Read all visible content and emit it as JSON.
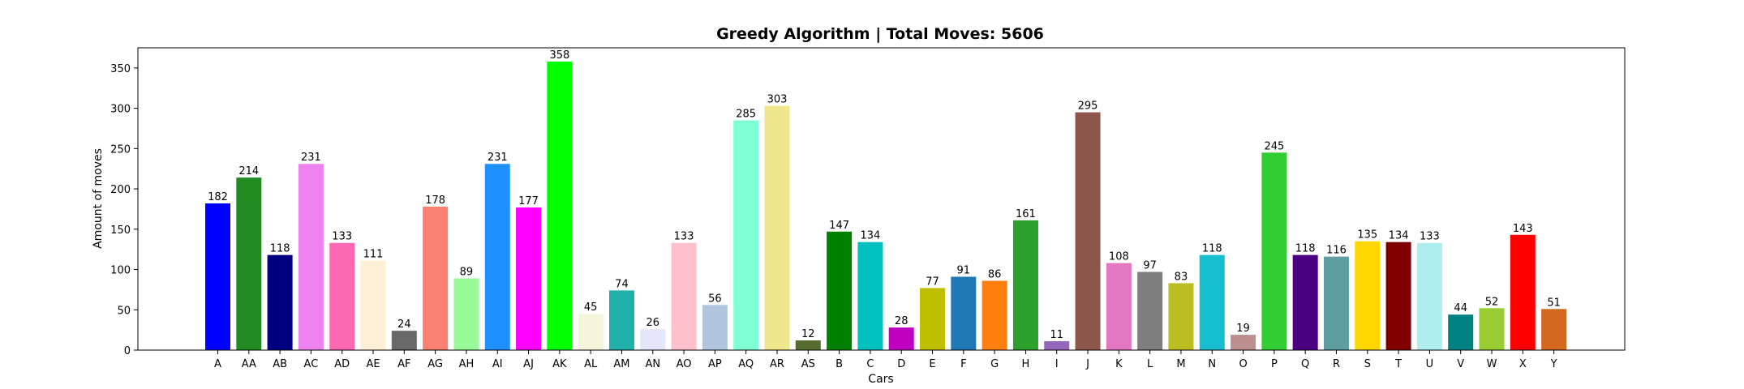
{
  "chart_data": {
    "type": "bar",
    "title": "Greedy Algorithm | Total Moves: 5606",
    "xlabel": "Cars",
    "ylabel": "Amount of moves",
    "ylim": [
      0,
      375
    ],
    "yticks": [
      0,
      50,
      100,
      150,
      200,
      250,
      300,
      350
    ],
    "grid": false,
    "categories": [
      "A",
      "AA",
      "AB",
      "AC",
      "AD",
      "AE",
      "AF",
      "AG",
      "AH",
      "AI",
      "AJ",
      "AK",
      "AL",
      "AM",
      "AN",
      "AO",
      "AP",
      "AQ",
      "AR",
      "AS",
      "B",
      "C",
      "D",
      "E",
      "F",
      "G",
      "H",
      "I",
      "J",
      "K",
      "L",
      "M",
      "N",
      "O",
      "P",
      "Q",
      "R",
      "S",
      "T",
      "U",
      "V",
      "W",
      "X",
      "Y"
    ],
    "values": [
      182,
      214,
      118,
      231,
      133,
      111,
      24,
      178,
      89,
      231,
      177,
      358,
      45,
      74,
      26,
      133,
      56,
      285,
      303,
      12,
      147,
      134,
      28,
      77,
      91,
      86,
      161,
      11,
      295,
      108,
      97,
      83,
      118,
      19,
      245,
      118,
      116,
      135,
      134,
      133,
      44,
      52,
      143,
      51
    ],
    "colors": [
      "#0000ff",
      "#228b22",
      "#000080",
      "#ee82ee",
      "#ff69b4",
      "#ffefd5",
      "#696969",
      "#fa8072",
      "#98fb98",
      "#1e90ff",
      "#ff00ff",
      "#00ff00",
      "#f5f5dc",
      "#20b2aa",
      "#e6e6fa",
      "#ffc0cb",
      "#b0c4de",
      "#7fffd4",
      "#f0e68c",
      "#556b2f",
      "#008000",
      "#00bfbf",
      "#bf00bf",
      "#bfbf00",
      "#1f77b4",
      "#ff7f0e",
      "#2ca02c",
      "#9467bd",
      "#8c564b",
      "#e377c2",
      "#7f7f7f",
      "#bcbd22",
      "#17becf",
      "#bc8f8f",
      "#32cd32",
      "#4b0082",
      "#5f9ea0",
      "#ffd700",
      "#800000",
      "#afeeee",
      "#008080",
      "#9acd32",
      "#ff0000",
      "#d2691e"
    ]
  }
}
